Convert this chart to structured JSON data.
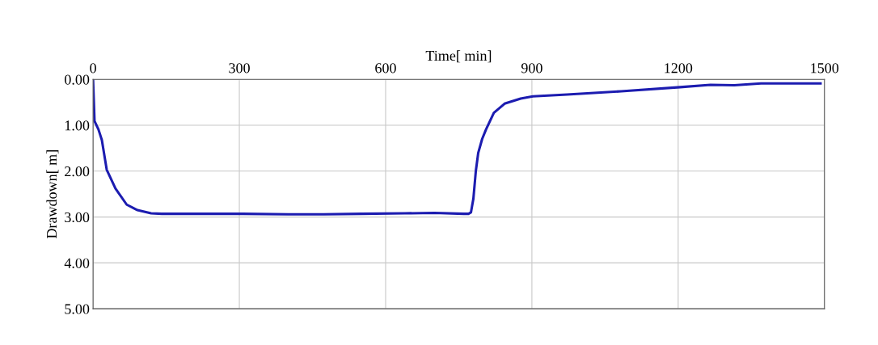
{
  "chart_data": {
    "type": "line",
    "xlabel": "Time[ min]",
    "ylabel": "Drawdown[ m]",
    "xlim": [
      0,
      1500
    ],
    "xticks": [
      0,
      300,
      600,
      900,
      1200,
      1500
    ],
    "ylim": [
      5,
      0
    ],
    "yticks": [
      {
        "value": 0,
        "label": "0.00"
      },
      {
        "value": 1,
        "label": "1.00"
      },
      {
        "value": 2,
        "label": "2.00"
      },
      {
        "value": 3,
        "label": "3.00"
      },
      {
        "value": 4,
        "label": "4.00"
      },
      {
        "value": 5,
        "label": "5.00"
      }
    ],
    "grid": true,
    "marker": "none",
    "line_style": "solid",
    "series": [
      {
        "color": "#1c1cb0",
        "x": [
          0,
          3,
          11,
          18,
          28,
          46,
          69,
          91,
          119,
          141,
          200,
          307,
          400,
          473,
          550,
          639,
          700,
          760,
          770,
          775,
          780,
          785,
          790,
          798,
          806,
          822,
          844,
          877,
          902,
          972,
          1083,
          1204,
          1266,
          1315,
          1370,
          1492
        ],
        "values": [
          0,
          0.91,
          1.09,
          1.32,
          1.97,
          2.38,
          2.73,
          2.85,
          2.92,
          2.93,
          2.93,
          2.93,
          2.94,
          2.94,
          2.93,
          2.92,
          2.91,
          2.93,
          2.93,
          2.9,
          2.6,
          2.0,
          1.6,
          1.3,
          1.09,
          0.73,
          0.53,
          0.42,
          0.37,
          0.33,
          0.26,
          0.17,
          0.12,
          0.13,
          0.09,
          0.09
        ]
      }
    ]
  }
}
